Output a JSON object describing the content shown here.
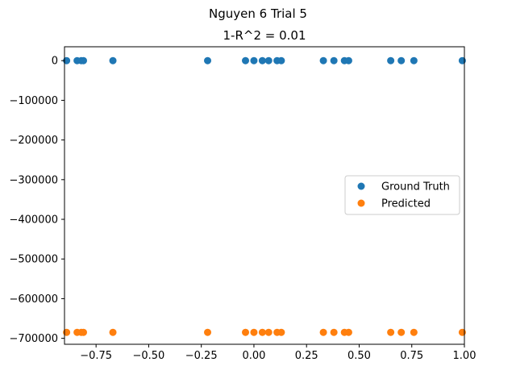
{
  "chart_data": {
    "type": "scatter",
    "suptitle": "Nguyen 6 Trial 5",
    "title": "1-R^2 = 0.01",
    "xlabel": "",
    "ylabel": "",
    "xlim": [
      -0.9,
      1.0
    ],
    "ylim": [
      -715000,
      35000
    ],
    "xticks": [
      -0.75,
      -0.5,
      -0.25,
      0.0,
      0.25,
      0.5,
      0.75,
      1.0
    ],
    "xtick_labels": [
      "−0.75",
      "−0.50",
      "−0.25",
      "0.00",
      "0.25",
      "0.50",
      "0.75",
      "1.00"
    ],
    "yticks": [
      0,
      -100000,
      -200000,
      -300000,
      -400000,
      -500000,
      -600000,
      -700000
    ],
    "ytick_labels": [
      "0",
      "−100000",
      "−200000",
      "−300000",
      "−400000",
      "−500000",
      "−600000",
      "−700000"
    ],
    "grid": false,
    "legend_position": "center-right",
    "series": [
      {
        "name": "Ground Truth",
        "color": "#1f77b4",
        "x": [
          -0.89,
          -0.84,
          -0.82,
          -0.81,
          -0.67,
          -0.22,
          -0.04,
          0.0,
          0.04,
          0.07,
          0.11,
          0.13,
          0.33,
          0.38,
          0.43,
          0.45,
          0.65,
          0.7,
          0.76,
          0.99
        ],
        "y": [
          0,
          0,
          0,
          0,
          0,
          0,
          0,
          0,
          0,
          0,
          0,
          0,
          0,
          0,
          0,
          0,
          0,
          0,
          0,
          0
        ]
      },
      {
        "name": "Predicted",
        "color": "#ff7f0e",
        "x": [
          -0.89,
          -0.84,
          -0.82,
          -0.81,
          -0.67,
          -0.22,
          -0.04,
          0.0,
          0.04,
          0.07,
          0.11,
          0.13,
          0.33,
          0.38,
          0.43,
          0.45,
          0.65,
          0.7,
          0.76,
          0.99
        ],
        "y": [
          -685000,
          -685000,
          -685000,
          -685000,
          -685000,
          -685000,
          -685000,
          -685000,
          -685000,
          -685000,
          -685000,
          -685000,
          -685000,
          -685000,
          -685000,
          -685000,
          -685000,
          -685000,
          -685000,
          -685000
        ]
      }
    ]
  }
}
